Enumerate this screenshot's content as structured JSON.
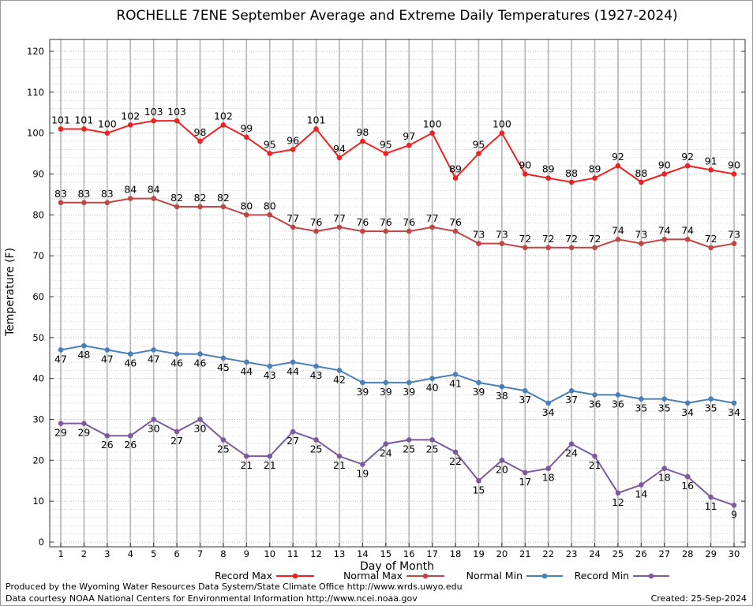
{
  "chart_data": {
    "type": "line",
    "title": "ROCHELLE 7ENE September Average and Extreme Daily Temperatures (1927-2024)",
    "xlabel": "Day of Month",
    "ylabel": "Temperature (F)",
    "x": [
      1,
      2,
      3,
      4,
      5,
      6,
      7,
      8,
      9,
      10,
      11,
      12,
      13,
      14,
      15,
      16,
      17,
      18,
      19,
      20,
      21,
      22,
      23,
      24,
      25,
      26,
      27,
      28,
      29,
      30
    ],
    "xlim": [
      1,
      30
    ],
    "ylim": [
      0,
      120
    ],
    "yticks": [
      0,
      10,
      20,
      30,
      40,
      50,
      60,
      70,
      80,
      90,
      100,
      110,
      120
    ],
    "grid": true,
    "legend_position": "bottom",
    "series": [
      {
        "name": "Record Max",
        "color": "#ee2222",
        "values": [
          101,
          101,
          100,
          102,
          103,
          103,
          98,
          102,
          99,
          95,
          96,
          101,
          94,
          98,
          95,
          97,
          100,
          89,
          95,
          100,
          90,
          89,
          88,
          89,
          92,
          88,
          90,
          92,
          91,
          90
        ],
        "label_position": "above"
      },
      {
        "name": "Normal Max",
        "color": "#c04545",
        "values": [
          83,
          83,
          83,
          84,
          84,
          82,
          82,
          82,
          80,
          80,
          77,
          76,
          77,
          76,
          76,
          76,
          77,
          76,
          73,
          73,
          72,
          72,
          72,
          72,
          74,
          73,
          74,
          74,
          72,
          73
        ],
        "label_position": "above"
      },
      {
        "name": "Normal Min",
        "color": "#4a80b8",
        "values": [
          47,
          48,
          47,
          46,
          47,
          46,
          46,
          45,
          44,
          43,
          44,
          43,
          42,
          39,
          39,
          39,
          40,
          41,
          39,
          38,
          37,
          34,
          37,
          36,
          36,
          35,
          35,
          34,
          35,
          34
        ],
        "label_position": "below"
      },
      {
        "name": "Record Min",
        "color": "#7b5a9e",
        "values": [
          29,
          29,
          26,
          26,
          30,
          27,
          30,
          25,
          21,
          21,
          27,
          25,
          21,
          19,
          24,
          25,
          25,
          22,
          15,
          20,
          17,
          18,
          24,
          21,
          12,
          14,
          18,
          16,
          11,
          9
        ],
        "label_position": "below"
      }
    ]
  },
  "footer": {
    "produced_by": "Produced by the Wyoming Water Resources Data System/State Climate Office http://www.wrds.uwyo.edu",
    "courtesy": "Data courtesy NOAA National Centers for Environmental Information http://www.ncei.noaa.gov",
    "created": "Created:  25-Sep-2024"
  }
}
